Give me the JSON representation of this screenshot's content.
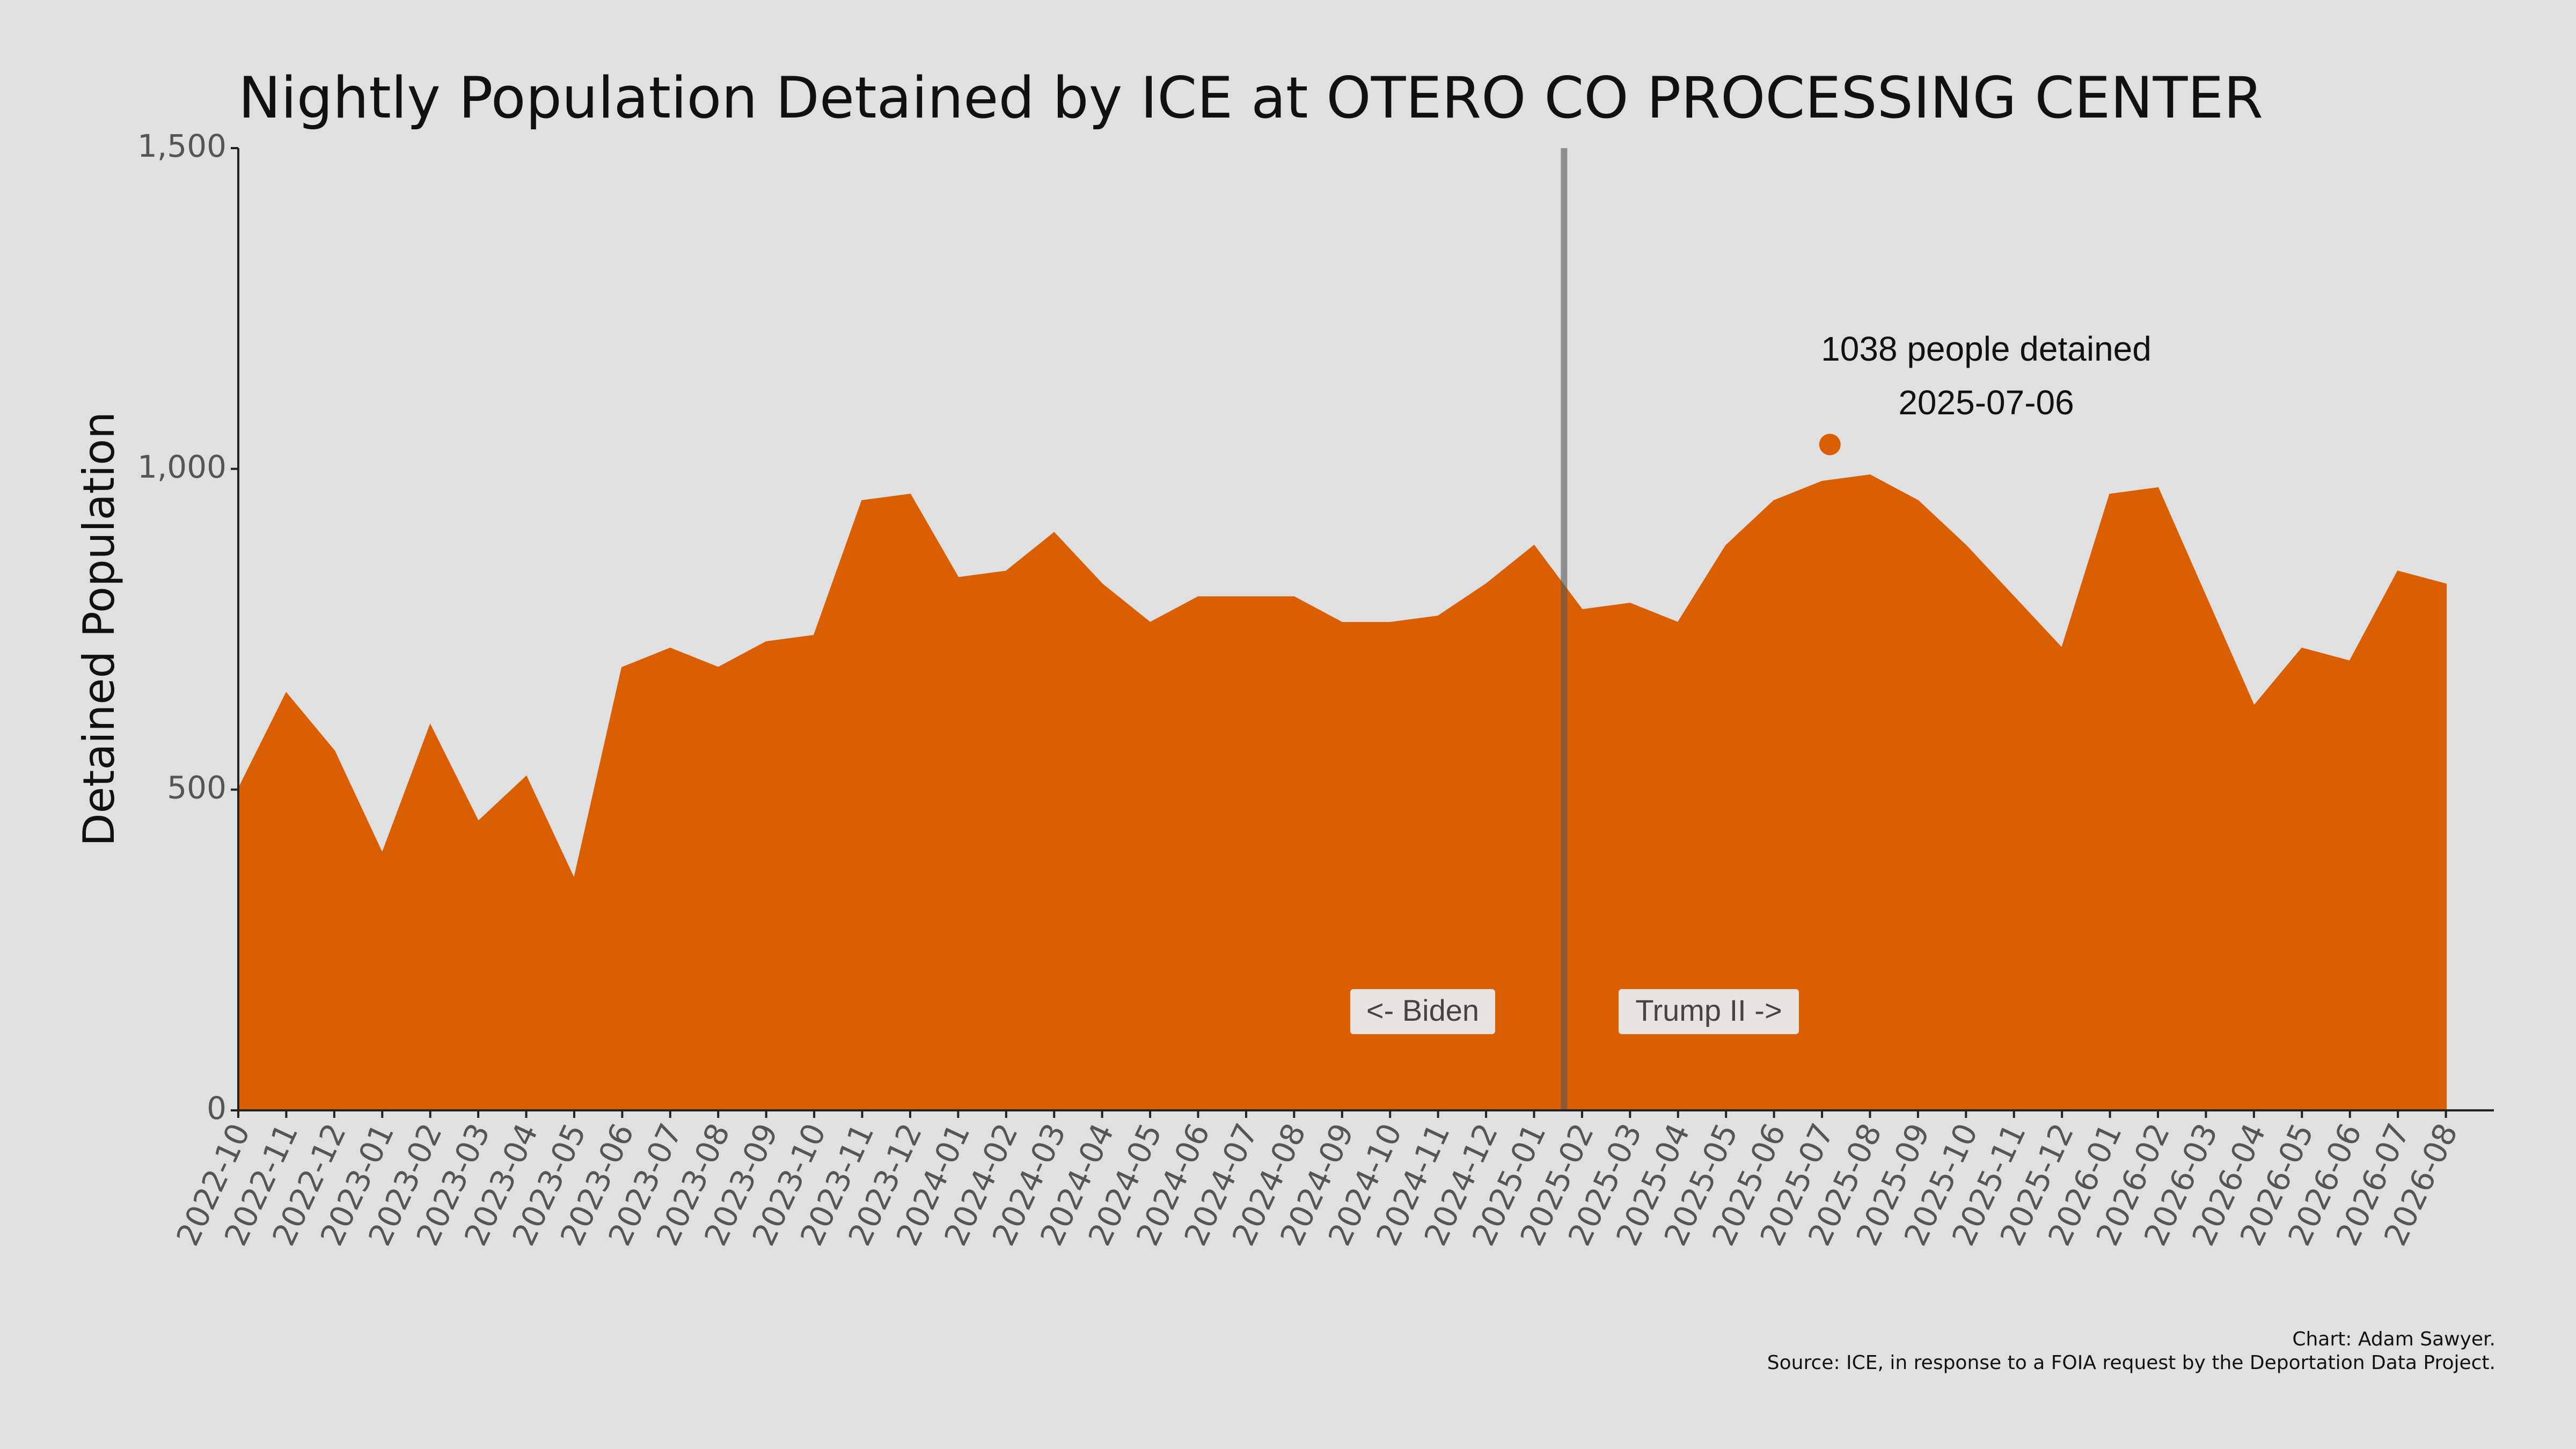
{
  "chart_data": {
    "type": "area",
    "title": "Nightly Population Detained by ICE at OTERO CO PROCESSING CENTER",
    "y_label": "Detained Population",
    "color": "#d95f02",
    "x": [
      "2022-10",
      "2022-11",
      "2022-12",
      "2023-01",
      "2023-02",
      "2023-03",
      "2023-04",
      "2023-05",
      "2023-06",
      "2023-07",
      "2023-08",
      "2023-09",
      "2023-10",
      "2023-11",
      "2023-12",
      "2024-01",
      "2024-02",
      "2024-03",
      "2024-04",
      "2024-05",
      "2024-06",
      "2024-07",
      "2024-08",
      "2024-09",
      "2024-10",
      "2024-11",
      "2024-12",
      "2025-01",
      "2025-02",
      "2025-03",
      "2025-04",
      "2025-05",
      "2025-06",
      "2025-07",
      "2025-08",
      "2025-09",
      "2025-10",
      "2025-11",
      "2025-12",
      "2026-01",
      "2026-02",
      "2026-03",
      "2026-04",
      "2026-05",
      "2026-06",
      "2026-07",
      "2026-08"
    ],
    "values": [
      500,
      650,
      560,
      400,
      600,
      450,
      520,
      360,
      690,
      720,
      690,
      730,
      740,
      950,
      960,
      830,
      840,
      900,
      820,
      760,
      800,
      800,
      800,
      760,
      760,
      770,
      820,
      880,
      780,
      790,
      760,
      880,
      950,
      980,
      990,
      950,
      880,
      800,
      720,
      960,
      970,
      800,
      630,
      720,
      700,
      840,
      820
    ],
    "xlim": [
      "2022-10",
      "2026-09"
    ],
    "xticks": [
      "2022-10",
      "2022-11",
      "2022-12",
      "2023-01",
      "2023-02",
      "2023-03",
      "2023-04",
      "2023-05",
      "2023-06",
      "2023-07",
      "2023-08",
      "2023-09",
      "2023-10",
      "2023-11",
      "2023-12",
      "2024-01",
      "2024-02",
      "2024-03",
      "2024-04",
      "2024-05",
      "2024-06",
      "2024-07",
      "2024-08",
      "2024-09",
      "2024-10",
      "2024-11",
      "2024-12",
      "2025-01",
      "2025-02",
      "2025-03",
      "2025-04",
      "2025-05",
      "2025-06",
      "2025-07",
      "2025-08",
      "2025-09",
      "2025-10",
      "2025-11",
      "2025-12",
      "2026-01",
      "2026-02",
      "2026-03",
      "2026-04",
      "2026-05",
      "2026-06",
      "2026-07",
      "2026-08"
    ],
    "ylim": [
      0,
      1500
    ],
    "yticks": [
      0,
      500,
      {
        "value": 1000,
        "label": "1,000"
      },
      {
        "value": 1500,
        "label": "1,500"
      }
    ],
    "divider": {
      "x": "2025-01-20",
      "left_label": "<- Biden",
      "right_label": "Trump II ->"
    },
    "annotation": {
      "x": "2025-07-06",
      "value": 1038,
      "label": "1038 people detained"
    },
    "credits": [
      "Chart: Adam Sawyer.",
      "Source: ICE, in response to a FOIA request by the Deportation Data Project."
    ]
  }
}
